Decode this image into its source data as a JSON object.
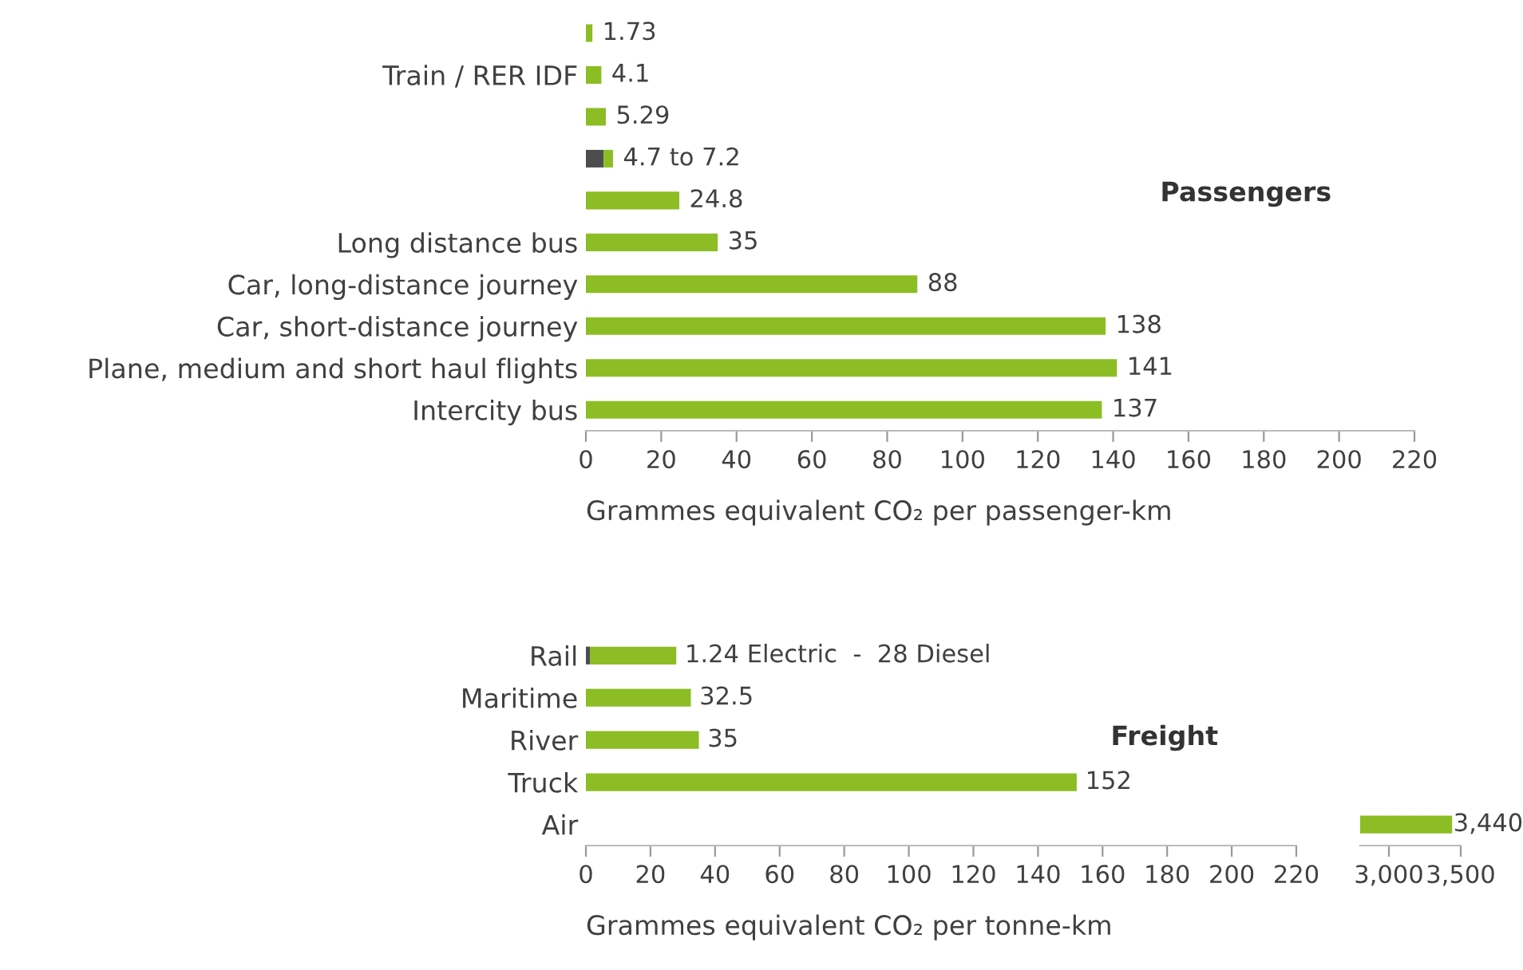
{
  "chart_data": [
    {
      "type": "bar",
      "orientation": "horizontal",
      "stacked": true,
      "categories": [
        null,
        "Train / RER IDF",
        null,
        null,
        null,
        "Long distance bus",
        "Car, long-distance journey",
        "Car, short-distance journey",
        "Plane, medium and short haul flights",
        "Intercity bus"
      ],
      "series": [
        {
          "color": "#4d4d4f",
          "values": [
            null,
            null,
            null,
            4.7,
            null,
            null,
            null,
            null,
            null,
            null
          ]
        },
        {
          "color": "#8cbd25",
          "values": [
            1.73,
            4.1,
            5.29,
            2.5,
            24.8,
            35,
            88,
            138,
            141,
            137
          ]
        }
      ],
      "value_labels": [
        "1.73",
        "4.1",
        "5.29",
        "4.7 to 7.2",
        "24.8",
        "35",
        "88",
        "138",
        "141",
        "137"
      ],
      "xlim": [
        0,
        220
      ],
      "xticks": [
        0,
        20,
        40,
        60,
        80,
        100,
        120,
        140,
        160,
        180,
        200,
        220
      ],
      "xlabel": "Grammes equivalent CO₂ per passenger-km",
      "annotations": [
        "Passengers"
      ],
      "grid": false
    },
    {
      "type": "bar",
      "orientation": "horizontal",
      "stacked": true,
      "categories": [
        "Rail",
        "Maritime",
        "River",
        "Truck",
        "Air"
      ],
      "series": [
        {
          "color": "#4d4d4f",
          "values": [
            1.24,
            null,
            null,
            null,
            null
          ]
        },
        {
          "color": "#8cbd25",
          "values": [
            26.76,
            32.5,
            35,
            152,
            null
          ]
        }
      ],
      "value_labels": [
        "1.24 Electric  -  28 Diesel",
        "32.5",
        "35",
        "152",
        null
      ],
      "xlim": [
        0,
        220
      ],
      "xticks": [
        0,
        20,
        40,
        60,
        80,
        100,
        120,
        140,
        160,
        180,
        200,
        220
      ],
      "xlabel": "Grammes equivalent CO₂ per tonne-km",
      "annotations": [
        "Freight"
      ],
      "grid": false
    },
    {
      "type": "bar",
      "orientation": "horizontal",
      "stacked": true,
      "categories": [
        null,
        null,
        null,
        null,
        null
      ],
      "series": [
        {
          "color": "#8cbd25",
          "values": [
            null,
            null,
            null,
            null,
            3440
          ]
        }
      ],
      "value_labels": [
        null,
        null,
        null,
        null,
        "3,440"
      ],
      "xlim": [
        2800,
        3500
      ],
      "xticks": [
        {
          "value": 3000,
          "label": "3,000"
        },
        {
          "value": 3500,
          "label": "3,500"
        }
      ],
      "tick_labels": "x",
      "grid": false
    }
  ]
}
